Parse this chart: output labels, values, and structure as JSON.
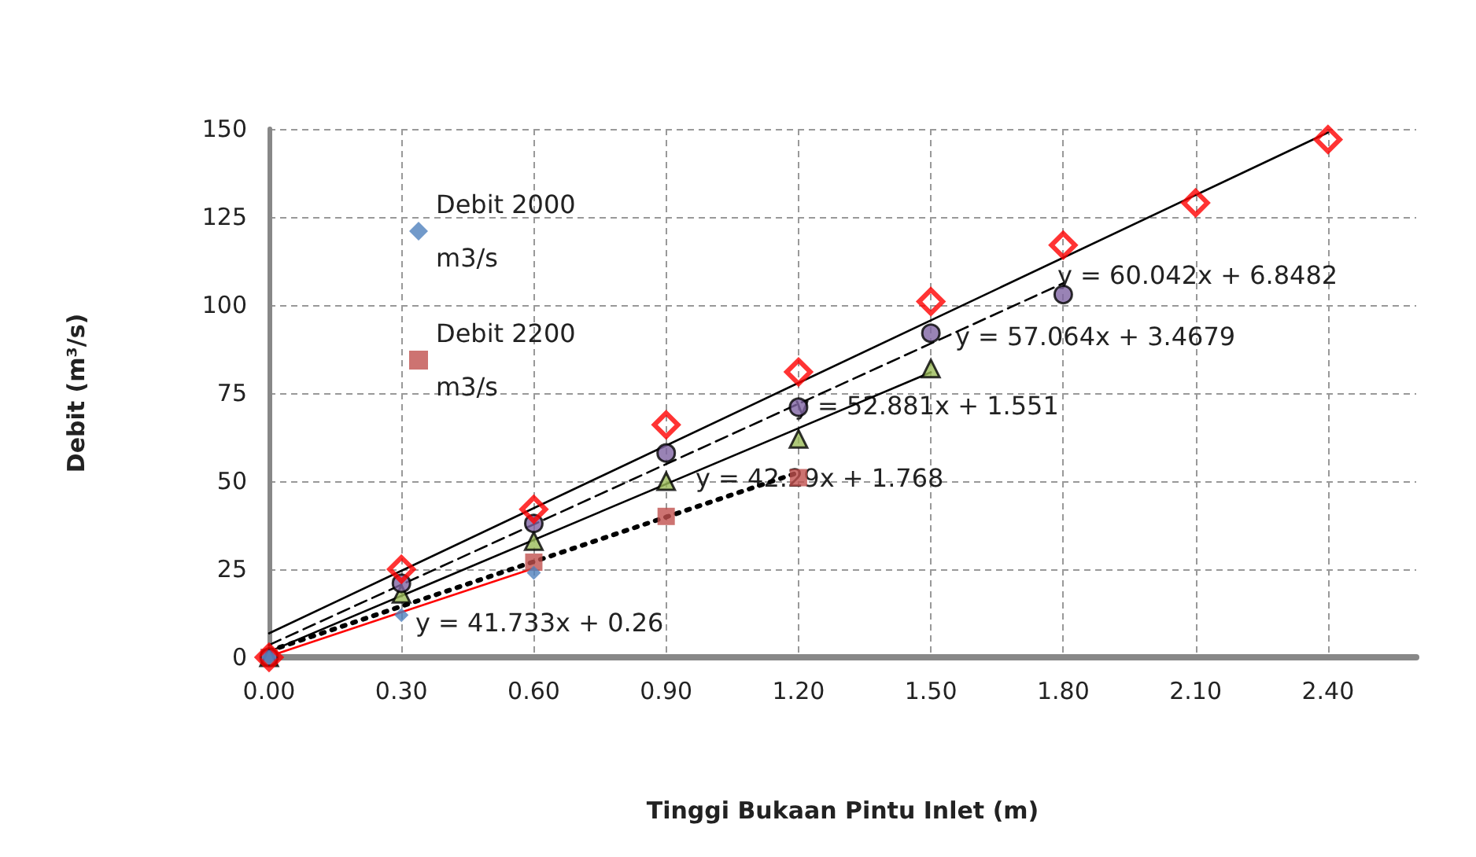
{
  "chart_data": {
    "type": "scatter",
    "xlabel": "Tinggi Bukaan Pintu Inlet (m)",
    "ylabel": "Debit (m³/s)",
    "xlim": [
      0,
      2.6
    ],
    "xticks": [
      {
        "value": 0,
        "label": "0.00"
      },
      {
        "value": 0.3,
        "label": "0.30"
      },
      {
        "value": 0.6,
        "label": "0.60"
      },
      {
        "value": 0.9,
        "label": "0.90"
      },
      {
        "value": 1.2,
        "label": "1.20"
      },
      {
        "value": 1.5,
        "label": "1.50"
      },
      {
        "value": 1.8,
        "label": "1.80"
      },
      {
        "value": 2.1,
        "label": "2.10"
      },
      {
        "value": 2.4,
        "label": "2.40"
      }
    ],
    "ylim": [
      0,
      150
    ],
    "yticks": [
      0,
      25,
      50,
      75,
      100,
      125,
      150
    ],
    "grid": true,
    "legend": "top left",
    "series": [
      {
        "type": "line",
        "color": "#ff0000",
        "line_style": "solid",
        "marker": "none",
        "x": [
          0,
          0.6
        ],
        "values": [
          0.3,
          25.3
        ]
      },
      {
        "type": "line",
        "color": "#000000",
        "line_style": "dotted",
        "marker": "none",
        "x": [
          0,
          1.2
        ],
        "values": [
          1.8,
          52.5
        ]
      },
      {
        "type": "line",
        "color": "#000000",
        "line_style": "solid",
        "marker": "none",
        "x": [
          0,
          1.5
        ],
        "values": [
          1.6,
          80.9
        ]
      },
      {
        "type": "line",
        "color": "#000000",
        "line_style": "dashed",
        "marker": "none",
        "x": [
          0,
          1.8
        ],
        "values": [
          3.5,
          106.2
        ]
      },
      {
        "type": "line",
        "color": "#000000",
        "line_style": "solid",
        "marker": "none",
        "x": [
          0,
          2.4
        ],
        "values": [
          6.8,
          149
        ]
      },
      {
        "name": "Debit 2000 m3/s",
        "color": "#4f81bd",
        "marker": "diamond",
        "x": [
          0,
          0.3,
          0.6
        ],
        "values": [
          0,
          12,
          24
        ]
      },
      {
        "name": "Debit 2200 m3/s",
        "color": "#c0504d",
        "marker": "square",
        "x": [
          0,
          0.3,
          0.6,
          0.9,
          1.2
        ],
        "values": [
          0,
          null,
          27,
          40,
          51
        ]
      },
      {
        "color": "#9bbb59",
        "marker": "triangle",
        "x": [
          0,
          0.3,
          0.6,
          0.9,
          1.2,
          1.5
        ],
        "values": [
          0,
          18,
          33,
          50,
          62,
          82
        ]
      },
      {
        "color": "#8064a2",
        "marker": "circle",
        "x": [
          0,
          0.3,
          0.6,
          0.9,
          1.2,
          1.5,
          1.8
        ],
        "values": [
          0,
          21,
          38,
          58,
          71,
          92,
          103
        ]
      },
      {
        "color": "#ff0000",
        "marker": "diamond",
        "x": [
          0,
          0.3,
          0.6,
          0.9,
          1.2,
          1.5,
          1.8,
          2.1,
          2.4
        ],
        "values": [
          0,
          25,
          42,
          66,
          81,
          101,
          117,
          129,
          147
        ]
      }
    ],
    "annotations": [
      "y = 60.042x + 6.8482",
      "y = 57.064x + 3.4679",
      "y = 52.881x + 1.551",
      "y = 42.29x + 1.768",
      "y = 41.733x + 0.26"
    ]
  }
}
